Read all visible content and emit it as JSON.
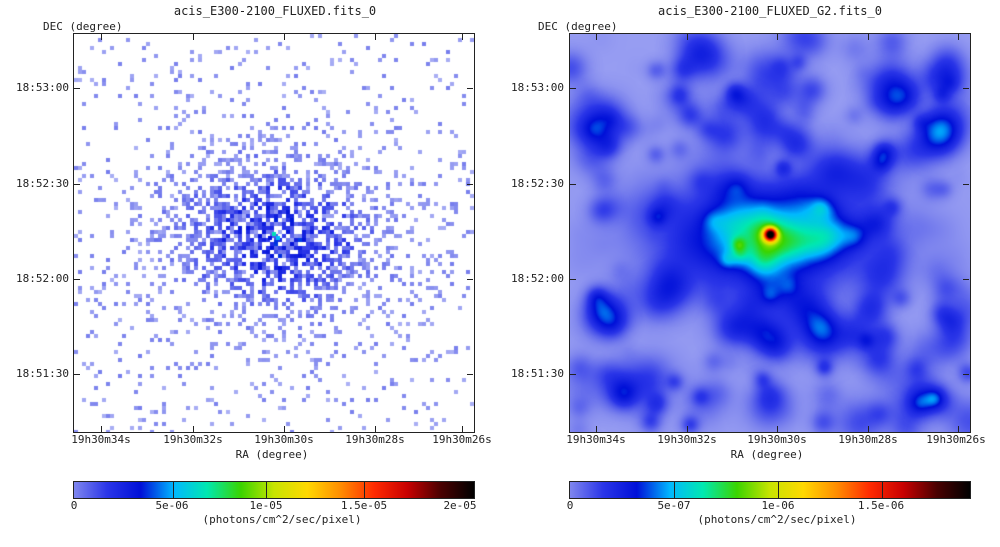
{
  "panels": [
    {
      "title": "acis_E300-2100_FLUXED.fits_0",
      "dec_label": "DEC (degree)",
      "ra_label": "RA (degree)",
      "dec_ticks": [
        "18:53:00",
        "18:52:30",
        "18:52:00",
        "18:51:30"
      ],
      "ra_ticks": [
        "19h30m34s",
        "19h30m32s",
        "19h30m30s",
        "19h30m28s",
        "19h30m26s"
      ],
      "colorbar": {
        "labels": [
          "0",
          "5e-06",
          "1e-05",
          "1.5e-05",
          "2e-05"
        ],
        "unit": "(photons/cm^2/sec/pixel)"
      },
      "style": "raw-counts"
    },
    {
      "title": "acis_E300-2100_FLUXED_G2.fits_0",
      "dec_label": "DEC (degree)",
      "ra_label": "RA (degree)",
      "dec_ticks": [
        "18:53:00",
        "18:52:30",
        "18:52:00",
        "18:51:30"
      ],
      "ra_ticks": [
        "19h30m34s",
        "19h30m32s",
        "19h30m30s",
        "19h30m28s",
        "19h30m26s"
      ],
      "colorbar": {
        "labels": [
          "0",
          "5e-07",
          "1e-06",
          "1.5e-06"
        ],
        "unit": "(photons/cm^2/sec/pixel)"
      },
      "style": "smoothed"
    }
  ],
  "colormap": [
    "#ffffff",
    "#c9cdfa",
    "#7f86ee",
    "#2a35e8",
    "#0010d8",
    "#00b8ff",
    "#00e8b0",
    "#3ad400",
    "#c8e400",
    "#ffd800",
    "#ff8c00",
    "#ff2a00",
    "#c80000",
    "#4a0000",
    "#000000"
  ]
}
